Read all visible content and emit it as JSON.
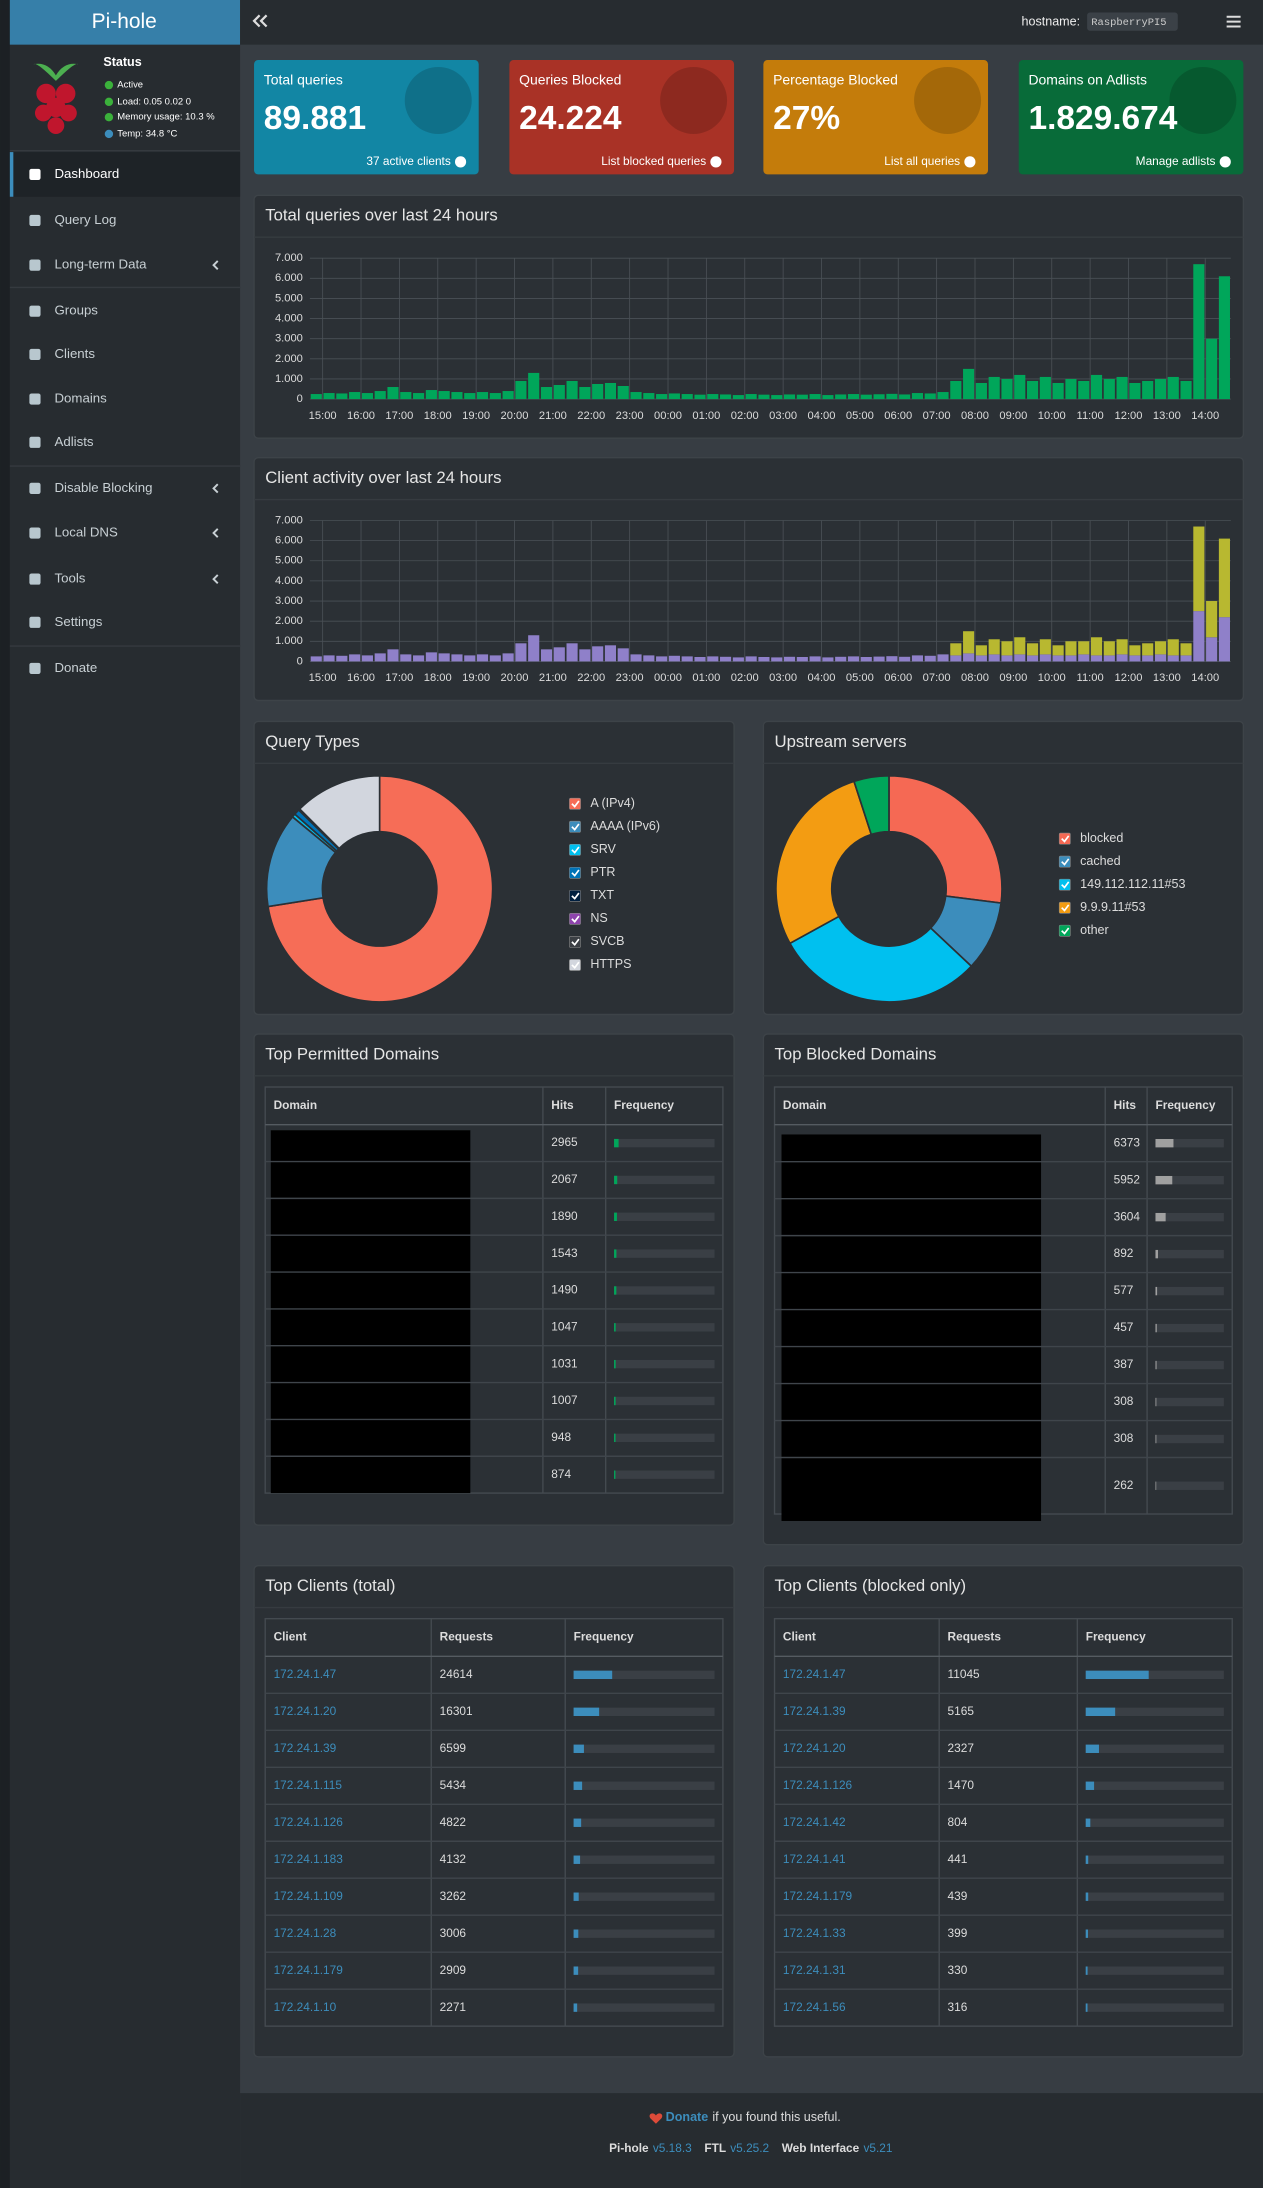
{
  "header": {
    "logo": "Pi-hole",
    "hostname_label": "hostname:",
    "hostname": "RaspberryPI5"
  },
  "status": {
    "title": "Status",
    "items": [
      "Active",
      "Load:  0.05  0.02  0",
      "Memory usage:  10.3 %",
      "Temp: 34.8 °C"
    ]
  },
  "menu": [
    "Dashboard",
    "Query Log",
    "Long-term Data",
    "Groups",
    "Clients",
    "Domains",
    "Adlists",
    "Disable Blocking",
    "Local DNS",
    "Tools",
    "Settings",
    "Donate"
  ],
  "stats": [
    {
      "title": "Total queries",
      "value": "89.881",
      "link": "37 active clients"
    },
    {
      "title": "Queries Blocked",
      "value": "24.224",
      "link": "List blocked queries"
    },
    {
      "title": "Percentage Blocked",
      "value": "27%",
      "link": "List all queries"
    },
    {
      "title": "Domains on Adlists",
      "value": "1.829.674",
      "link": "Manage adlists"
    }
  ],
  "chart_data": [
    {
      "type": "bar",
      "title": "Total queries over last 24 hours",
      "color": "#00a65a",
      "categories": [
        null,
        "15:00",
        null,
        null,
        "16:00",
        null,
        null,
        "17:00",
        null,
        null,
        "18:00",
        null,
        null,
        "19:00",
        null,
        null,
        "20:00",
        null,
        null,
        "21:00",
        null,
        null,
        "22:00",
        null,
        null,
        "23:00",
        null,
        null,
        "00:00",
        null,
        null,
        "01:00",
        null,
        null,
        "02:00",
        null,
        null,
        "03:00",
        null,
        null,
        "04:00",
        null,
        null,
        "05:00",
        null,
        null,
        "06:00",
        null,
        null,
        "07:00",
        null,
        null,
        "08:00",
        null,
        null,
        "09:00",
        null,
        null,
        "10:00",
        null,
        null,
        "11:00",
        null,
        null,
        "12:00",
        null,
        null,
        "13:00",
        null,
        null,
        "14:00",
        null
      ],
      "values": [
        250,
        300,
        280,
        350,
        300,
        400,
        600,
        350,
        300,
        450,
        400,
        350,
        300,
        350,
        300,
        400,
        900,
        1300,
        600,
        700,
        900,
        600,
        750,
        800,
        650,
        350,
        300,
        250,
        280,
        250,
        220,
        250,
        230,
        200,
        250,
        220,
        200,
        230,
        220,
        250,
        200,
        230,
        250,
        220,
        240,
        260,
        230,
        300,
        280,
        350,
        900,
        1500,
        800,
        1100,
        1000,
        1200,
        900,
        1100,
        800,
        1000,
        900,
        1200,
        1000,
        1100,
        800,
        900,
        1000,
        1100,
        900,
        6700,
        3000,
        6100
      ],
      "ylim": [
        0,
        7000
      ],
      "yticks": [
        0,
        {
          "value": 1000,
          "label": "1.000"
        },
        {
          "value": 2000,
          "label": "2.000"
        },
        {
          "value": 3000,
          "label": "3.000"
        },
        {
          "value": 4000,
          "label": "4.000"
        },
        {
          "value": 5000,
          "label": "5.000"
        },
        {
          "value": 6000,
          "label": "6.000"
        },
        {
          "value": 7000,
          "label": "7.000"
        }
      ],
      "grid": true
    },
    {
      "type": "bar",
      "title": "Client activity over last 24 hours",
      "stacked": true,
      "categories": [
        null,
        "15:00",
        null,
        null,
        "16:00",
        null,
        null,
        "17:00",
        null,
        null,
        "18:00",
        null,
        null,
        "19:00",
        null,
        null,
        "20:00",
        null,
        null,
        "21:00",
        null,
        null,
        "22:00",
        null,
        null,
        "23:00",
        null,
        null,
        "00:00",
        null,
        null,
        "01:00",
        null,
        null,
        "02:00",
        null,
        null,
        "03:00",
        null,
        null,
        "04:00",
        null,
        null,
        "05:00",
        null,
        null,
        "06:00",
        null,
        null,
        "07:00",
        null,
        null,
        "08:00",
        null,
        null,
        "09:00",
        null,
        null,
        "10:00",
        null,
        null,
        "11:00",
        null,
        null,
        "12:00",
        null,
        null,
        "13:00",
        null,
        null,
        "14:00",
        null
      ],
      "series": [
        {
          "color": "#8f80c9",
          "values": [
            250,
            300,
            280,
            350,
            300,
            400,
            600,
            350,
            300,
            450,
            400,
            350,
            300,
            350,
            300,
            400,
            900,
            1300,
            600,
            700,
            900,
            600,
            750,
            800,
            650,
            350,
            300,
            250,
            280,
            250,
            220,
            250,
            230,
            200,
            250,
            220,
            200,
            230,
            220,
            250,
            200,
            230,
            250,
            220,
            240,
            260,
            230,
            300,
            280,
            350,
            300,
            400,
            300,
            350,
            300,
            350,
            300,
            350,
            300,
            300,
            350,
            300,
            300,
            350,
            300,
            300,
            350,
            300,
            300,
            2500,
            1200,
            2200
          ]
        },
        {
          "color": "#b8b830",
          "values": [
            0,
            0,
            0,
            0,
            0,
            0,
            0,
            0,
            0,
            0,
            0,
            0,
            0,
            0,
            0,
            0,
            0,
            0,
            0,
            0,
            0,
            0,
            0,
            0,
            0,
            0,
            0,
            0,
            0,
            0,
            0,
            0,
            0,
            0,
            0,
            0,
            0,
            0,
            0,
            0,
            0,
            0,
            0,
            0,
            0,
            0,
            0,
            0,
            0,
            0,
            600,
            1100,
            500,
            750,
            700,
            850,
            600,
            750,
            500,
            700,
            650,
            900,
            700,
            750,
            500,
            600,
            650,
            800,
            600,
            4200,
            1800,
            3900
          ]
        }
      ],
      "ylim": [
        0,
        7000
      ],
      "yticks": [
        0,
        {
          "value": 1000,
          "label": "1.000"
        },
        {
          "value": 2000,
          "label": "2.000"
        },
        {
          "value": 3000,
          "label": "3.000"
        },
        {
          "value": 4000,
          "label": "4.000"
        },
        {
          "value": 5000,
          "label": "5.000"
        },
        {
          "value": 6000,
          "label": "6.000"
        },
        {
          "value": 7000,
          "label": "7.000"
        }
      ],
      "grid": true
    },
    {
      "type": "pie",
      "title": "Query Types",
      "categories": [
        "A (IPv4)",
        "AAAA (IPv6)",
        "SRV",
        "PTR",
        "TXT",
        "NS",
        "SVCB",
        "HTTPS"
      ],
      "values": [
        72.5,
        13.5,
        0.5,
        0.8,
        0.1,
        0.1,
        0,
        12.5
      ],
      "colors": [
        "#f66d57",
        "#3c8dbc",
        "#00c0ef",
        "#0073b7",
        "#001f3f",
        "#8e44ad",
        "#3b3f44",
        "#d2d6de"
      ]
    },
    {
      "type": "pie",
      "title": "Upstream servers",
      "categories": [
        "blocked",
        "cached",
        "149.112.112.11#53",
        "9.9.9.11#53",
        "other"
      ],
      "values": [
        27,
        10,
        30,
        28,
        5
      ],
      "colors": [
        "#f56954",
        "#3c8dbc",
        "#00c0ef",
        "#f39c12",
        "#00a65a"
      ]
    }
  ],
  "top_permitted": {
    "title": "Top Permitted Domains",
    "columns": [
      "Domain",
      "Hits",
      "Frequency"
    ],
    "hits": [
      2965,
      2067,
      1890,
      1543,
      1490,
      1047,
      1031,
      1007,
      948,
      874
    ]
  },
  "top_blocked": {
    "title": "Top Blocked Domains",
    "columns": [
      "Domain",
      "Hits",
      "Frequency"
    ],
    "hits": [
      6373,
      5952,
      3604,
      892,
      577,
      457,
      387,
      308,
      308,
      262
    ]
  },
  "top_clients": {
    "title": "Top Clients (total)",
    "columns": [
      "Client",
      "Requests",
      "Frequency"
    ],
    "clients": [
      "172.24.1.47",
      "172.24.1.20",
      "172.24.1.39",
      "172.24.1.115",
      "172.24.1.126",
      "172.24.1.183",
      "172.24.1.109",
      "172.24.1.28",
      "172.24.1.179",
      "172.24.1.10"
    ],
    "requests": [
      24614,
      16301,
      6599,
      5434,
      4822,
      4132,
      3262,
      3006,
      2909,
      2271
    ]
  },
  "top_clients_blocked": {
    "title": "Top Clients (blocked only)",
    "columns": [
      "Client",
      "Requests",
      "Frequency"
    ],
    "clients": [
      "172.24.1.47",
      "172.24.1.39",
      "172.24.1.20",
      "172.24.1.126",
      "172.24.1.42",
      "172.24.1.41",
      "172.24.1.179",
      "172.24.1.33",
      "172.24.1.31",
      "172.24.1.56"
    ],
    "requests": [
      11045,
      5165,
      2327,
      1470,
      804,
      441,
      439,
      399,
      330,
      316
    ]
  },
  "footer": {
    "donate": "Donate",
    "donate_text": "if you found this useful.",
    "items": [
      {
        "name": "Pi-hole",
        "version": "v5.18.3"
      },
      {
        "name": "FTL",
        "version": "v5.25.2"
      },
      {
        "name": "Web Interface",
        "version": "v5.21"
      }
    ]
  }
}
